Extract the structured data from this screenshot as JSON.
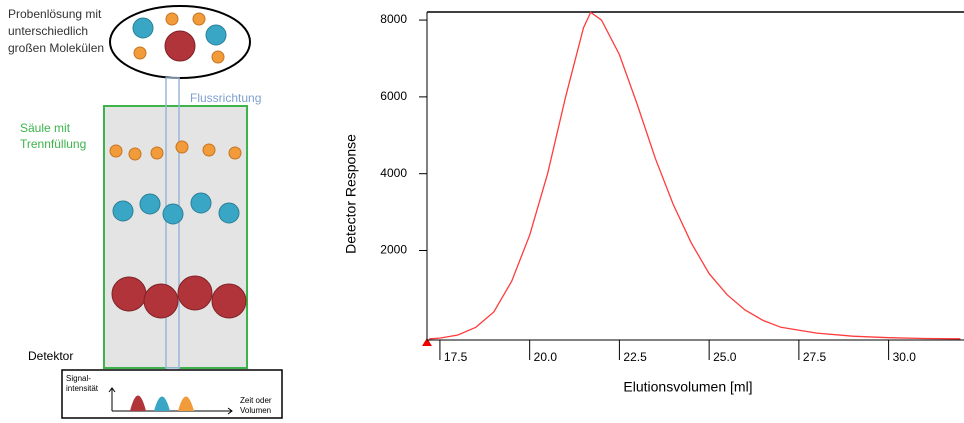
{
  "diagram": {
    "sample_label": [
      "Probenlösung mit",
      "unterschiedlich",
      "großen Molekülen"
    ],
    "flow_label": "Flussrichtung",
    "column_label": [
      "Säule mit",
      "Trennfüllung"
    ],
    "detector_label": "Detektor",
    "inset_y_label": [
      "Signal-",
      "intensität"
    ],
    "inset_x_label": [
      "Zeit oder",
      "Volumen"
    ]
  },
  "chart_data": {
    "type": "line",
    "xlabel": "Elutionsvolumen [ml]",
    "ylabel": "Detector Response",
    "x": [
      17.2,
      17.5,
      18.0,
      18.5,
      19.0,
      19.5,
      20.0,
      20.5,
      21.0,
      21.5,
      21.7,
      22.0,
      22.5,
      23.0,
      23.5,
      24.0,
      24.5,
      25.0,
      25.5,
      26.0,
      26.5,
      27.0,
      28.0,
      29.0,
      30.0,
      31.0,
      32.0
    ],
    "series": [
      {
        "color": "#ff3c3c",
        "values": [
          -300,
          -280,
          -200,
          0,
          400,
          1200,
          2400,
          4000,
          6000,
          7800,
          8200,
          8000,
          7100,
          5800,
          4400,
          3200,
          2200,
          1400,
          850,
          450,
          180,
          0,
          -150,
          -230,
          -270,
          -290,
          -300
        ]
      }
    ],
    "xlim": [
      17.14,
      32.1
    ],
    "ylim": [
      -330,
      8210
    ],
    "xticks": [
      17.5,
      {
        "value": 20,
        "label": "20.0"
      },
      22.5,
      {
        "value": 25,
        "label": "25.0"
      },
      27.5,
      {
        "value": 30,
        "label": "30.0"
      }
    ],
    "yticks": [
      2000,
      4000,
      6000,
      8000
    ]
  }
}
